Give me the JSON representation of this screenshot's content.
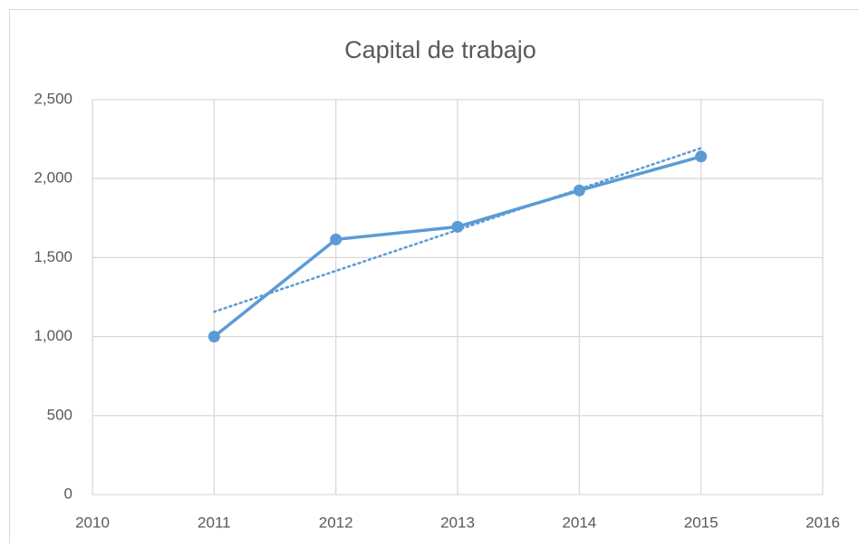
{
  "chart_data": {
    "type": "line",
    "title": "Capital de trabajo",
    "x": [
      2011,
      2012,
      2013,
      2014,
      2015
    ],
    "series": [
      {
        "name": "Capital de trabajo",
        "color": "#5b9bd5",
        "values": [
          1000,
          1615,
          1695,
          1925,
          2140
        ]
      }
    ],
    "xlim": [
      2010,
      2016
    ],
    "xticks": [
      2010,
      2011,
      2012,
      2013,
      2014,
      2015,
      2016
    ],
    "ylim": [
      0,
      2500
    ],
    "yticks": [
      0,
      500,
      {
        "value": 1000,
        "label": "1,000"
      },
      {
        "value": 1500,
        "label": "1,500"
      },
      {
        "value": 2000,
        "label": "2,000"
      },
      {
        "value": 2500,
        "label": "2,500"
      }
    ],
    "grid": true,
    "markers": true,
    "trendline": "linear"
  }
}
